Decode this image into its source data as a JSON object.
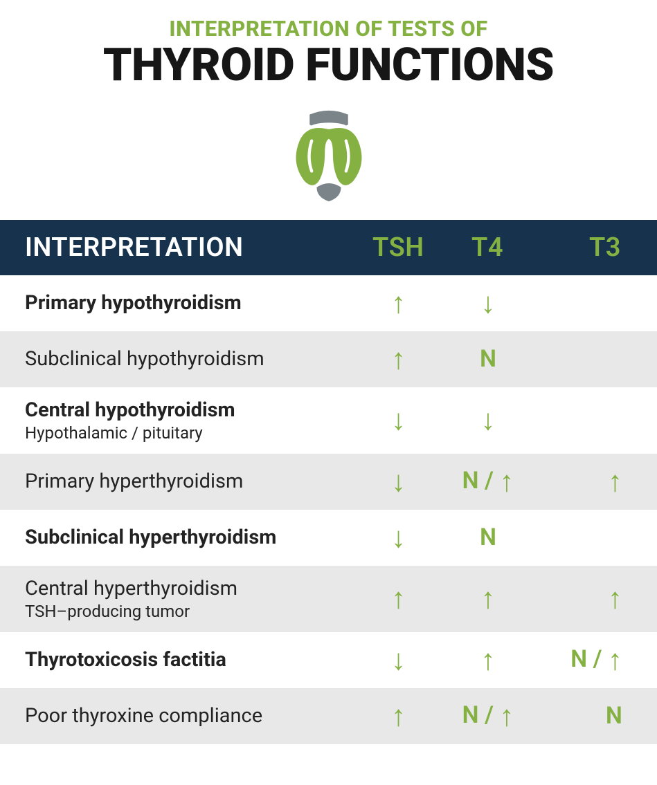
{
  "colors": {
    "accent_green": "#84b141",
    "accent_gray": "#7a8489",
    "header_navy": "#16324d",
    "row_shade": "#e8e8e8",
    "row_plain": "#ffffff",
    "text_black": "#161616",
    "text_dark": "#232323",
    "text_white": "#ffffff"
  },
  "header": {
    "subtitle": "INTERPRETATION OF TESTS OF",
    "title": "THYROID FUNCTIONS"
  },
  "columns": {
    "interpretation": "INTERPRETATION",
    "tsh": "TSH",
    "t4": "T4",
    "t3": "T3"
  },
  "rows": [
    {
      "label": "Primary hypothyroidism",
      "sublabel": "",
      "tsh": "↑",
      "t4": "↓",
      "t3": "",
      "shaded": false,
      "bold": true
    },
    {
      "label": "Subclinical hypothyroidism",
      "sublabel": "",
      "tsh": "↑",
      "t4": "N",
      "t3": "",
      "shaded": true,
      "bold": false
    },
    {
      "label": "Central hypothyroidism",
      "sublabel": "Hypothalamic / pituitary",
      "tsh": "↓",
      "t4": "↓",
      "t3": "",
      "shaded": false,
      "bold": true
    },
    {
      "label": "Primary hyperthyroidism",
      "sublabel": "",
      "tsh": "↓",
      "t4": "N / ↑",
      "t3": "↑",
      "shaded": true,
      "bold": false
    },
    {
      "label": "Subclinical hyperthyroidism",
      "sublabel": "",
      "tsh": "↓",
      "t4": "N",
      "t3": "",
      "shaded": false,
      "bold": true
    },
    {
      "label": "Central hyperthyroidism",
      "sublabel": "TSH–producing tumor",
      "tsh": "↑",
      "t4": "↑",
      "t3": "↑",
      "shaded": true,
      "bold": false
    },
    {
      "label": "Thyrotoxicosis factitia",
      "sublabel": "",
      "tsh": "↓",
      "t4": "↑",
      "t3": "N / ↑",
      "shaded": false,
      "bold": true
    },
    {
      "label": "Poor thyroxine compliance",
      "sublabel": "",
      "tsh": "↑",
      "t4": "N / ↑",
      "t3": "N",
      "shaded": true,
      "bold": false
    }
  ]
}
